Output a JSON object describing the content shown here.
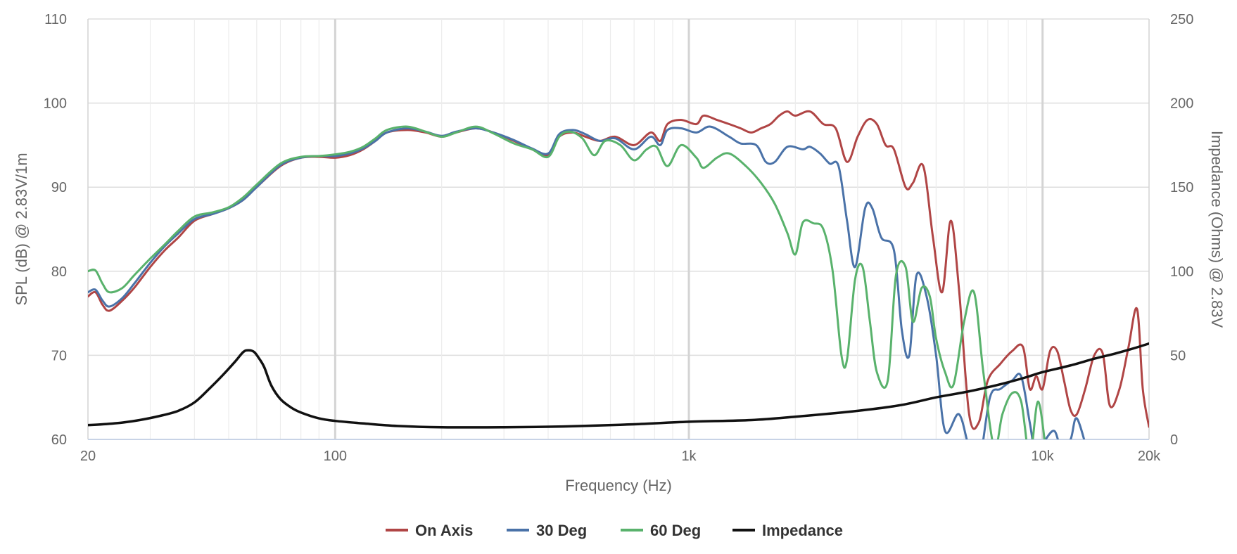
{
  "chart_data": {
    "type": "line",
    "title": "",
    "xlabel": "Frequency (Hz)",
    "ylabel": "SPL (dB) @ 2.83V/1m",
    "y2label": "Impedance (Ohms) @ 2.83V",
    "x_scale": "log",
    "xlim": [
      20,
      20000
    ],
    "ylim": [
      60,
      110
    ],
    "y2lim": [
      0,
      250
    ],
    "x_ticks": [
      {
        "value": 20,
        "label": "20"
      },
      {
        "value": 100,
        "label": "100"
      },
      {
        "value": 1000,
        "label": "1k"
      },
      {
        "value": 10000,
        "label": "10k"
      },
      {
        "value": 20000,
        "label": "20k"
      }
    ],
    "y_ticks": [
      60,
      70,
      80,
      90,
      100,
      110
    ],
    "y2_ticks": [
      0,
      50,
      100,
      150,
      200,
      250
    ],
    "grid": true,
    "legend_position": "bottom",
    "series": [
      {
        "name": "On Axis",
        "axis": "left",
        "color": "#b04545",
        "points": [
          [
            20,
            77
          ],
          [
            21,
            77.5
          ],
          [
            22,
            76
          ],
          [
            23,
            75.3
          ],
          [
            25,
            76.5
          ],
          [
            27,
            78
          ],
          [
            30,
            80.5
          ],
          [
            33,
            82.5
          ],
          [
            36,
            84
          ],
          [
            40,
            86
          ],
          [
            45,
            86.8
          ],
          [
            50,
            87.5
          ],
          [
            55,
            88.5
          ],
          [
            60,
            90
          ],
          [
            70,
            92.5
          ],
          [
            80,
            93.5
          ],
          [
            90,
            93.6
          ],
          [
            100,
            93.5
          ],
          [
            110,
            93.8
          ],
          [
            120,
            94.5
          ],
          [
            130,
            95.5
          ],
          [
            140,
            96.5
          ],
          [
            160,
            96.8
          ],
          [
            180,
            96.5
          ],
          [
            200,
            96
          ],
          [
            220,
            96.5
          ],
          [
            250,
            97
          ],
          [
            280,
            96.5
          ],
          [
            320,
            95.5
          ],
          [
            360,
            94.5
          ],
          [
            400,
            93.8
          ],
          [
            430,
            96
          ],
          [
            470,
            96.5
          ],
          [
            510,
            96
          ],
          [
            560,
            95.5
          ],
          [
            620,
            96
          ],
          [
            700,
            95
          ],
          [
            780,
            96.5
          ],
          [
            830,
            95.5
          ],
          [
            870,
            97.5
          ],
          [
            950,
            98
          ],
          [
            1050,
            97.5
          ],
          [
            1100,
            98.5
          ],
          [
            1200,
            98
          ],
          [
            1300,
            97.5
          ],
          [
            1400,
            97
          ],
          [
            1500,
            96.5
          ],
          [
            1600,
            97
          ],
          [
            1700,
            97.5
          ],
          [
            1800,
            98.5
          ],
          [
            1900,
            99
          ],
          [
            2000,
            98.5
          ],
          [
            2200,
            99
          ],
          [
            2400,
            97.5
          ],
          [
            2600,
            97
          ],
          [
            2800,
            93
          ],
          [
            3000,
            96
          ],
          [
            3200,
            98
          ],
          [
            3400,
            97.5
          ],
          [
            3600,
            95
          ],
          [
            3800,
            94.5
          ],
          [
            4100,
            90
          ],
          [
            4300,
            90.5
          ],
          [
            4600,
            92.5
          ],
          [
            4900,
            84
          ],
          [
            5200,
            77.5
          ],
          [
            5500,
            86
          ],
          [
            5800,
            78
          ],
          [
            6200,
            63
          ],
          [
            6600,
            62
          ],
          [
            7000,
            67
          ],
          [
            7600,
            69
          ],
          [
            8200,
            70.5
          ],
          [
            8800,
            71
          ],
          [
            9200,
            66
          ],
          [
            9600,
            67.5
          ],
          [
            10000,
            66
          ],
          [
            10500,
            70.5
          ],
          [
            11000,
            70.5
          ],
          [
            11500,
            67
          ],
          [
            12000,
            63.5
          ],
          [
            12500,
            63
          ],
          [
            13200,
            66
          ],
          [
            14000,
            70
          ],
          [
            14800,
            70.2
          ],
          [
            15500,
            64
          ],
          [
            16500,
            66
          ],
          [
            17500,
            71
          ],
          [
            18500,
            75.5
          ],
          [
            19200,
            66
          ],
          [
            20000,
            61.5
          ]
        ]
      },
      {
        "name": "30 Deg",
        "axis": "left",
        "color": "#4a72a8",
        "points": [
          [
            20,
            77.5
          ],
          [
            21,
            77.8
          ],
          [
            22,
            76.5
          ],
          [
            23,
            75.8
          ],
          [
            25,
            76.8
          ],
          [
            27,
            78.5
          ],
          [
            30,
            81
          ],
          [
            33,
            83
          ],
          [
            36,
            84.5
          ],
          [
            40,
            86.2
          ],
          [
            45,
            86.8
          ],
          [
            50,
            87.5
          ],
          [
            55,
            88.5
          ],
          [
            60,
            90
          ],
          [
            70,
            92.6
          ],
          [
            80,
            93.5
          ],
          [
            90,
            93.7
          ],
          [
            100,
            93.7
          ],
          [
            110,
            94
          ],
          [
            120,
            94.6
          ],
          [
            130,
            95.5
          ],
          [
            140,
            96.5
          ],
          [
            160,
            97
          ],
          [
            180,
            96.6
          ],
          [
            200,
            96.1
          ],
          [
            220,
            96.6
          ],
          [
            250,
            97
          ],
          [
            280,
            96.5
          ],
          [
            320,
            95.6
          ],
          [
            360,
            94.6
          ],
          [
            400,
            94
          ],
          [
            430,
            96.3
          ],
          [
            470,
            96.8
          ],
          [
            510,
            96.3
          ],
          [
            560,
            95.5
          ],
          [
            620,
            95.8
          ],
          [
            700,
            94.5
          ],
          [
            780,
            96
          ],
          [
            830,
            95
          ],
          [
            870,
            96.8
          ],
          [
            950,
            97
          ],
          [
            1050,
            96.5
          ],
          [
            1150,
            97.2
          ],
          [
            1300,
            96
          ],
          [
            1400,
            95.2
          ],
          [
            1550,
            95
          ],
          [
            1650,
            93
          ],
          [
            1750,
            93
          ],
          [
            1900,
            94.8
          ],
          [
            2100,
            94.5
          ],
          [
            2200,
            94.8
          ],
          [
            2350,
            94
          ],
          [
            2500,
            92.8
          ],
          [
            2650,
            92.5
          ],
          [
            2800,
            86
          ],
          [
            2950,
            80.5
          ],
          [
            3150,
            87.5
          ],
          [
            3300,
            87.5
          ],
          [
            3500,
            84
          ],
          [
            3800,
            82.5
          ],
          [
            4000,
            73
          ],
          [
            4200,
            70
          ],
          [
            4400,
            79.5
          ],
          [
            4700,
            77
          ],
          [
            5000,
            70
          ],
          [
            5300,
            61
          ],
          [
            5800,
            63
          ],
          [
            6200,
            59
          ],
          [
            6600,
            57
          ],
          [
            7100,
            65
          ],
          [
            7600,
            66
          ],
          [
            8200,
            67
          ],
          [
            8700,
            67.5
          ],
          [
            9200,
            62
          ],
          [
            9600,
            58
          ],
          [
            10200,
            60
          ],
          [
            10800,
            61
          ],
          [
            11300,
            59
          ],
          [
            12000,
            60
          ],
          [
            12500,
            62.5
          ],
          [
            13500,
            58
          ]
        ]
      },
      {
        "name": "60 Deg",
        "axis": "left",
        "color": "#59b26c",
        "points": [
          [
            20,
            80
          ],
          [
            21,
            80.1
          ],
          [
            22,
            78.5
          ],
          [
            23,
            77.5
          ],
          [
            25,
            78
          ],
          [
            27,
            79.5
          ],
          [
            30,
            81.5
          ],
          [
            33,
            83.2
          ],
          [
            36,
            84.8
          ],
          [
            40,
            86.5
          ],
          [
            45,
            87
          ],
          [
            50,
            87.6
          ],
          [
            55,
            88.8
          ],
          [
            60,
            90.3
          ],
          [
            70,
            92.8
          ],
          [
            80,
            93.6
          ],
          [
            90,
            93.7
          ],
          [
            100,
            93.9
          ],
          [
            110,
            94.2
          ],
          [
            120,
            94.8
          ],
          [
            130,
            95.8
          ],
          [
            140,
            96.8
          ],
          [
            160,
            97.2
          ],
          [
            180,
            96.6
          ],
          [
            200,
            96
          ],
          [
            220,
            96.5
          ],
          [
            250,
            97.2
          ],
          [
            280,
            96.4
          ],
          [
            320,
            95.2
          ],
          [
            360,
            94.5
          ],
          [
            400,
            93.6
          ],
          [
            430,
            96
          ],
          [
            460,
            96.6
          ],
          [
            500,
            95.8
          ],
          [
            540,
            93.8
          ],
          [
            580,
            95.5
          ],
          [
            640,
            95
          ],
          [
            700,
            93.2
          ],
          [
            760,
            94.5
          ],
          [
            810,
            94.8
          ],
          [
            870,
            92.5
          ],
          [
            950,
            95
          ],
          [
            1050,
            93.5
          ],
          [
            1100,
            92.3
          ],
          [
            1200,
            93.5
          ],
          [
            1300,
            94
          ],
          [
            1450,
            92.5
          ],
          [
            1600,
            90.5
          ],
          [
            1750,
            88
          ],
          [
            1900,
            84.5
          ],
          [
            2000,
            82
          ],
          [
            2100,
            85.8
          ],
          [
            2250,
            85.7
          ],
          [
            2400,
            85
          ],
          [
            2550,
            80
          ],
          [
            2700,
            70
          ],
          [
            2800,
            69.5
          ],
          [
            2950,
            79
          ],
          [
            3100,
            80.5
          ],
          [
            3250,
            74
          ],
          [
            3400,
            68
          ],
          [
            3650,
            67
          ],
          [
            3850,
            79.5
          ],
          [
            4100,
            80.5
          ],
          [
            4300,
            74
          ],
          [
            4550,
            78
          ],
          [
            4800,
            77
          ],
          [
            5000,
            72
          ],
          [
            5300,
            68
          ],
          [
            5600,
            66.5
          ],
          [
            6000,
            74
          ],
          [
            6400,
            77.5
          ],
          [
            6800,
            68
          ],
          [
            7300,
            59
          ],
          [
            7700,
            63
          ],
          [
            8200,
            65.5
          ],
          [
            8700,
            64.5
          ],
          [
            9200,
            58
          ],
          [
            9700,
            64.5
          ],
          [
            10200,
            59
          ]
        ]
      },
      {
        "name": "Impedance",
        "axis": "right",
        "color": "#111111",
        "points": [
          [
            20,
            8.5
          ],
          [
            22,
            9
          ],
          [
            25,
            10
          ],
          [
            28,
            11.5
          ],
          [
            32,
            14
          ],
          [
            36,
            17
          ],
          [
            40,
            22
          ],
          [
            44,
            30
          ],
          [
            48,
            38
          ],
          [
            52,
            46
          ],
          [
            55,
            52
          ],
          [
            57,
            53
          ],
          [
            59,
            52
          ],
          [
            61,
            48
          ],
          [
            63,
            43
          ],
          [
            66,
            32
          ],
          [
            70,
            24
          ],
          [
            75,
            19
          ],
          [
            80,
            16
          ],
          [
            90,
            12.5
          ],
          [
            100,
            11
          ],
          [
            120,
            9.5
          ],
          [
            150,
            8
          ],
          [
            200,
            7.2
          ],
          [
            300,
            7.2
          ],
          [
            400,
            7.5
          ],
          [
            500,
            8
          ],
          [
            700,
            9
          ],
          [
            1000,
            10.5
          ],
          [
            1500,
            11.5
          ],
          [
            2000,
            13.5
          ],
          [
            3000,
            17
          ],
          [
            4000,
            20.5
          ],
          [
            5000,
            25
          ],
          [
            6000,
            28
          ],
          [
            7000,
            31
          ],
          [
            8000,
            34
          ],
          [
            9000,
            37
          ],
          [
            10000,
            40
          ],
          [
            12000,
            44
          ],
          [
            14000,
            48
          ],
          [
            16000,
            51
          ],
          [
            18000,
            54
          ],
          [
            20000,
            57
          ]
        ]
      }
    ]
  }
}
